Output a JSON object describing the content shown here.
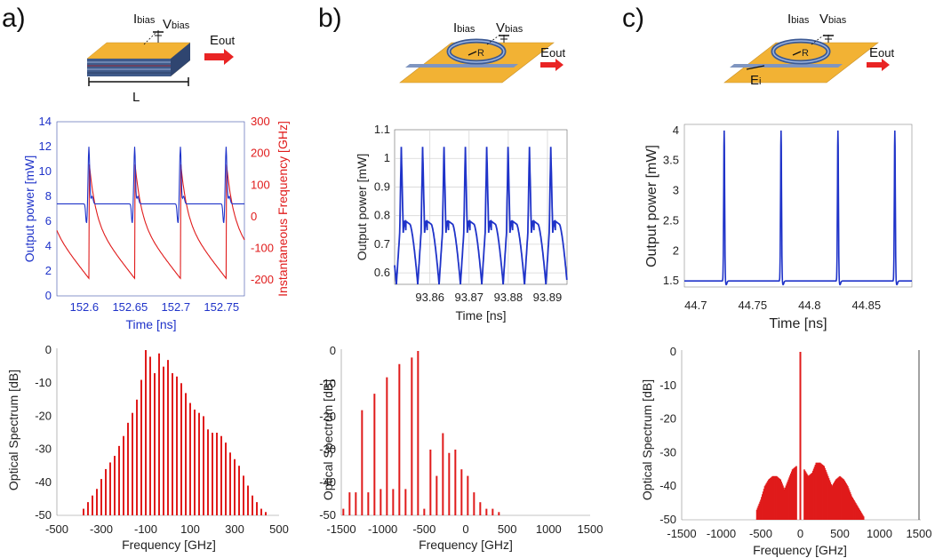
{
  "panels": [
    {
      "label": "a)",
      "schematic": {
        "ibias": "I",
        "ibias_sub": "bias",
        "vbias": "V",
        "vbias_sub": "bias",
        "eout": "E",
        "eout_sub": "out",
        "length": "L"
      },
      "time_plot": {
        "xlabel": "Time [ns]",
        "ylabel": "Output power [mW]",
        "y2label": "Instantaneous Frequency [GHz]",
        "xticks": [
          "152.6",
          "152.65",
          "152.7",
          "152.75"
        ],
        "yticks": [
          "0",
          "2",
          "4",
          "6",
          "8",
          "10",
          "12",
          "14"
        ],
        "y2ticks": [
          "-200",
          "-100",
          "0",
          "100",
          "200",
          "300"
        ]
      },
      "spectrum": {
        "xlabel": "Frequency [GHz]",
        "ylabel": "Optical Spectrum [dB]",
        "xticks": [
          "-500",
          "-300",
          "-100",
          "100",
          "300",
          "500"
        ],
        "yticks": [
          "0",
          "-10",
          "-20",
          "-30",
          "-40",
          "-50"
        ]
      }
    },
    {
      "label": "b)",
      "schematic": {
        "ibias": "I",
        "ibias_sub": "bias",
        "vbias": "V",
        "vbias_sub": "bias",
        "eout": "E",
        "eout_sub": "out",
        "radius": "R"
      },
      "time_plot": {
        "xlabel": "Time [ns]",
        "ylabel": "Output power [mW]",
        "xticks": [
          "93.86",
          "93.87",
          "93.88",
          "93.89"
        ],
        "yticks": [
          "0.6",
          "0.7",
          "0.8",
          "0.9",
          "1",
          "1.1"
        ]
      },
      "spectrum": {
        "xlabel": "Frequency [GHz]",
        "ylabel": "Optical Spectrum [dB]",
        "xticks": [
          "-1500",
          "-1000",
          "-500",
          "0",
          "500",
          "1000",
          "1500"
        ],
        "yticks": [
          "0",
          "-10",
          "-20",
          "-30",
          "-40",
          "-50"
        ]
      }
    },
    {
      "label": "c)",
      "schematic": {
        "ibias": "I",
        "ibias_sub": "bias",
        "vbias": "V",
        "vbias_sub": "bias",
        "eout": "E",
        "eout_sub": "out",
        "radius": "R",
        "ein": "E",
        "ein_sub": "i"
      },
      "time_plot": {
        "xlabel": "Time [ns]",
        "ylabel": "Output power [mW]",
        "xticks": [
          "44.7",
          "44.75",
          "44.8",
          "44.85"
        ],
        "yticks": [
          "1.5",
          "2",
          "2.5",
          "3",
          "3.5",
          "4"
        ]
      },
      "spectrum": {
        "xlabel": "Frequency [GHz]",
        "ylabel": "Optical Spectrum [dB]",
        "xticks": [
          "-1500",
          "-1000",
          "-500",
          "0",
          "500",
          "1000",
          "1500"
        ],
        "yticks": [
          "0",
          "-10",
          "-20",
          "-30",
          "-40",
          "-50"
        ]
      }
    }
  ],
  "colors": {
    "power": "#1f33c9",
    "frequency": "#e01b1b",
    "spectrum": "#e01b1b",
    "gold": "#f2b234",
    "waveguide": "#7f95c0"
  },
  "chart_data": [
    {
      "type": "line",
      "panel": "a",
      "xlabel": "Time [ns]",
      "ylabel": "Output power [mW]",
      "y2label": "Instantaneous Frequency [GHz]",
      "xlim": [
        152.57,
        152.775
      ],
      "ylim": [
        0,
        14
      ],
      "y2lim": [
        -250,
        300
      ],
      "grid": false,
      "series": [
        {
          "axis": "left",
          "color": "#1f33c9",
          "x": [
            152.57,
            152.585,
            152.595,
            152.6,
            152.605,
            152.61,
            152.615,
            152.62,
            152.63,
            152.645,
            152.65,
            152.655,
            152.66,
            152.665,
            152.67,
            152.68,
            152.695,
            152.7,
            152.705,
            152.71,
            152.715,
            152.72,
            152.73,
            152.745,
            152.75,
            152.755,
            152.76,
            152.765,
            152.77,
            152.775
          ],
          "y": [
            7.4,
            7.5,
            7.2,
            5.8,
            12.0,
            7.2,
            8.0,
            7.6,
            7.5,
            7.2,
            5.8,
            12.0,
            7.2,
            8.0,
            7.6,
            7.5,
            7.2,
            5.8,
            12.0,
            7.2,
            8.0,
            7.6,
            7.5,
            7.2,
            5.8,
            12.0,
            7.2,
            8.0,
            7.6,
            7.5
          ]
        },
        {
          "axis": "right",
          "color": "#e01b1b",
          "x": [
            152.57,
            152.585,
            152.595,
            152.6,
            152.605,
            152.61,
            152.615,
            152.62,
            152.63,
            152.645,
            152.65,
            152.655,
            152.66,
            152.665,
            152.67,
            152.68,
            152.695,
            152.7,
            152.705,
            152.71,
            152.715,
            152.72,
            152.73,
            152.745,
            152.75,
            152.755,
            152.76,
            152.765,
            152.77,
            152.775
          ],
          "y": [
            -60,
            -110,
            -170,
            -195,
            190,
            60,
            20,
            -20,
            -90,
            -170,
            -195,
            190,
            60,
            20,
            -20,
            -90,
            -170,
            -195,
            190,
            60,
            20,
            -20,
            -90,
            -170,
            -195,
            190,
            60,
            20,
            -20,
            -90
          ]
        }
      ]
    },
    {
      "type": "bar",
      "panel": "a",
      "xlabel": "Frequency [GHz]",
      "ylabel": "Optical Spectrum [dB]",
      "xlim": [
        -500,
        500
      ],
      "ylim": [
        -50,
        0
      ],
      "grid": false,
      "x": [
        -380,
        -360,
        -340,
        -320,
        -300,
        -280,
        -260,
        -240,
        -220,
        -200,
        -180,
        -160,
        -140,
        -120,
        -100,
        -80,
        -60,
        -40,
        -20,
        0,
        20,
        40,
        60,
        80,
        100,
        120,
        140,
        160,
        180,
        200,
        220,
        240,
        260,
        280,
        300,
        320,
        340,
        360,
        380,
        400,
        420,
        440
      ],
      "values": [
        -48,
        -46,
        -44,
        -42,
        -39,
        -36,
        -34,
        -32,
        -29,
        -26,
        -22,
        -19,
        -15,
        -9,
        0,
        -2,
        -7,
        -1,
        -5,
        -3,
        -7,
        -8,
        -10,
        -13,
        -16,
        -18,
        -19,
        -20,
        -24,
        -25,
        -25,
        -26,
        -28,
        -31,
        -33,
        -35,
        -38,
        -41,
        -44,
        -46,
        -48,
        -49
      ]
    },
    {
      "type": "line",
      "panel": "b",
      "xlabel": "Time [ns]",
      "ylabel": "Output power [mW]",
      "xlim": [
        93.851,
        93.895
      ],
      "ylim": [
        0.56,
        1.1
      ],
      "grid": true,
      "period_ns": 0.0055,
      "peak": 1.04,
      "shoulder": 0.78,
      "minimum": 0.56
    },
    {
      "type": "bar",
      "panel": "b",
      "xlabel": "Frequency [GHz]",
      "ylabel": "Optical Spectrum [dB]",
      "xlim": [
        -1500,
        1500
      ],
      "ylim": [
        -50,
        0
      ],
      "grid": false,
      "x": [
        -1475,
        -1400,
        -1325,
        -1250,
        -1175,
        -1100,
        -1025,
        -950,
        -875,
        -800,
        -725,
        -650,
        -575,
        -500,
        -425,
        -350,
        -275,
        -200,
        -125,
        -50,
        25,
        100,
        175,
        250,
        325,
        400
      ],
      "values": [
        -48,
        -43,
        -43,
        -18,
        -43,
        -13,
        -42,
        -8,
        -42,
        -4,
        -42,
        -2,
        0,
        -48,
        -30,
        -38,
        -25,
        -31,
        -30,
        -36,
        -38,
        -43,
        -46,
        -48,
        -48,
        -49
      ]
    },
    {
      "type": "line",
      "panel": "c",
      "xlabel": "Time [ns]",
      "ylabel": "Output power [mW]",
      "xlim": [
        44.69,
        44.89
      ],
      "ylim": [
        1.4,
        4.1
      ],
      "grid": false,
      "pulse_times": [
        44.725,
        44.775,
        44.825,
        44.875
      ],
      "baseline": 1.5,
      "peak": 4.0
    },
    {
      "type": "bar",
      "panel": "c",
      "xlabel": "Frequency [GHz]",
      "ylabel": "Optical Spectrum [dB]",
      "xlim": [
        -1500,
        1500
      ],
      "ylim": [
        -50,
        0
      ],
      "grid": false,
      "x": [
        -550,
        -500,
        -450,
        -400,
        -350,
        -300,
        -250,
        -200,
        -150,
        -100,
        -50,
        0,
        50,
        100,
        150,
        200,
        250,
        300,
        350,
        400,
        450,
        500,
        550,
        600,
        650,
        700,
        750,
        800
      ],
      "values": [
        -47,
        -44,
        -40,
        -38,
        -37,
        -37,
        -38,
        -41,
        -38,
        -35,
        -34,
        0,
        -35,
        -37,
        -36,
        -33,
        -33,
        -34,
        -37,
        -40,
        -38,
        -37,
        -38,
        -40,
        -43,
        -45,
        -47,
        -49
      ]
    }
  ]
}
